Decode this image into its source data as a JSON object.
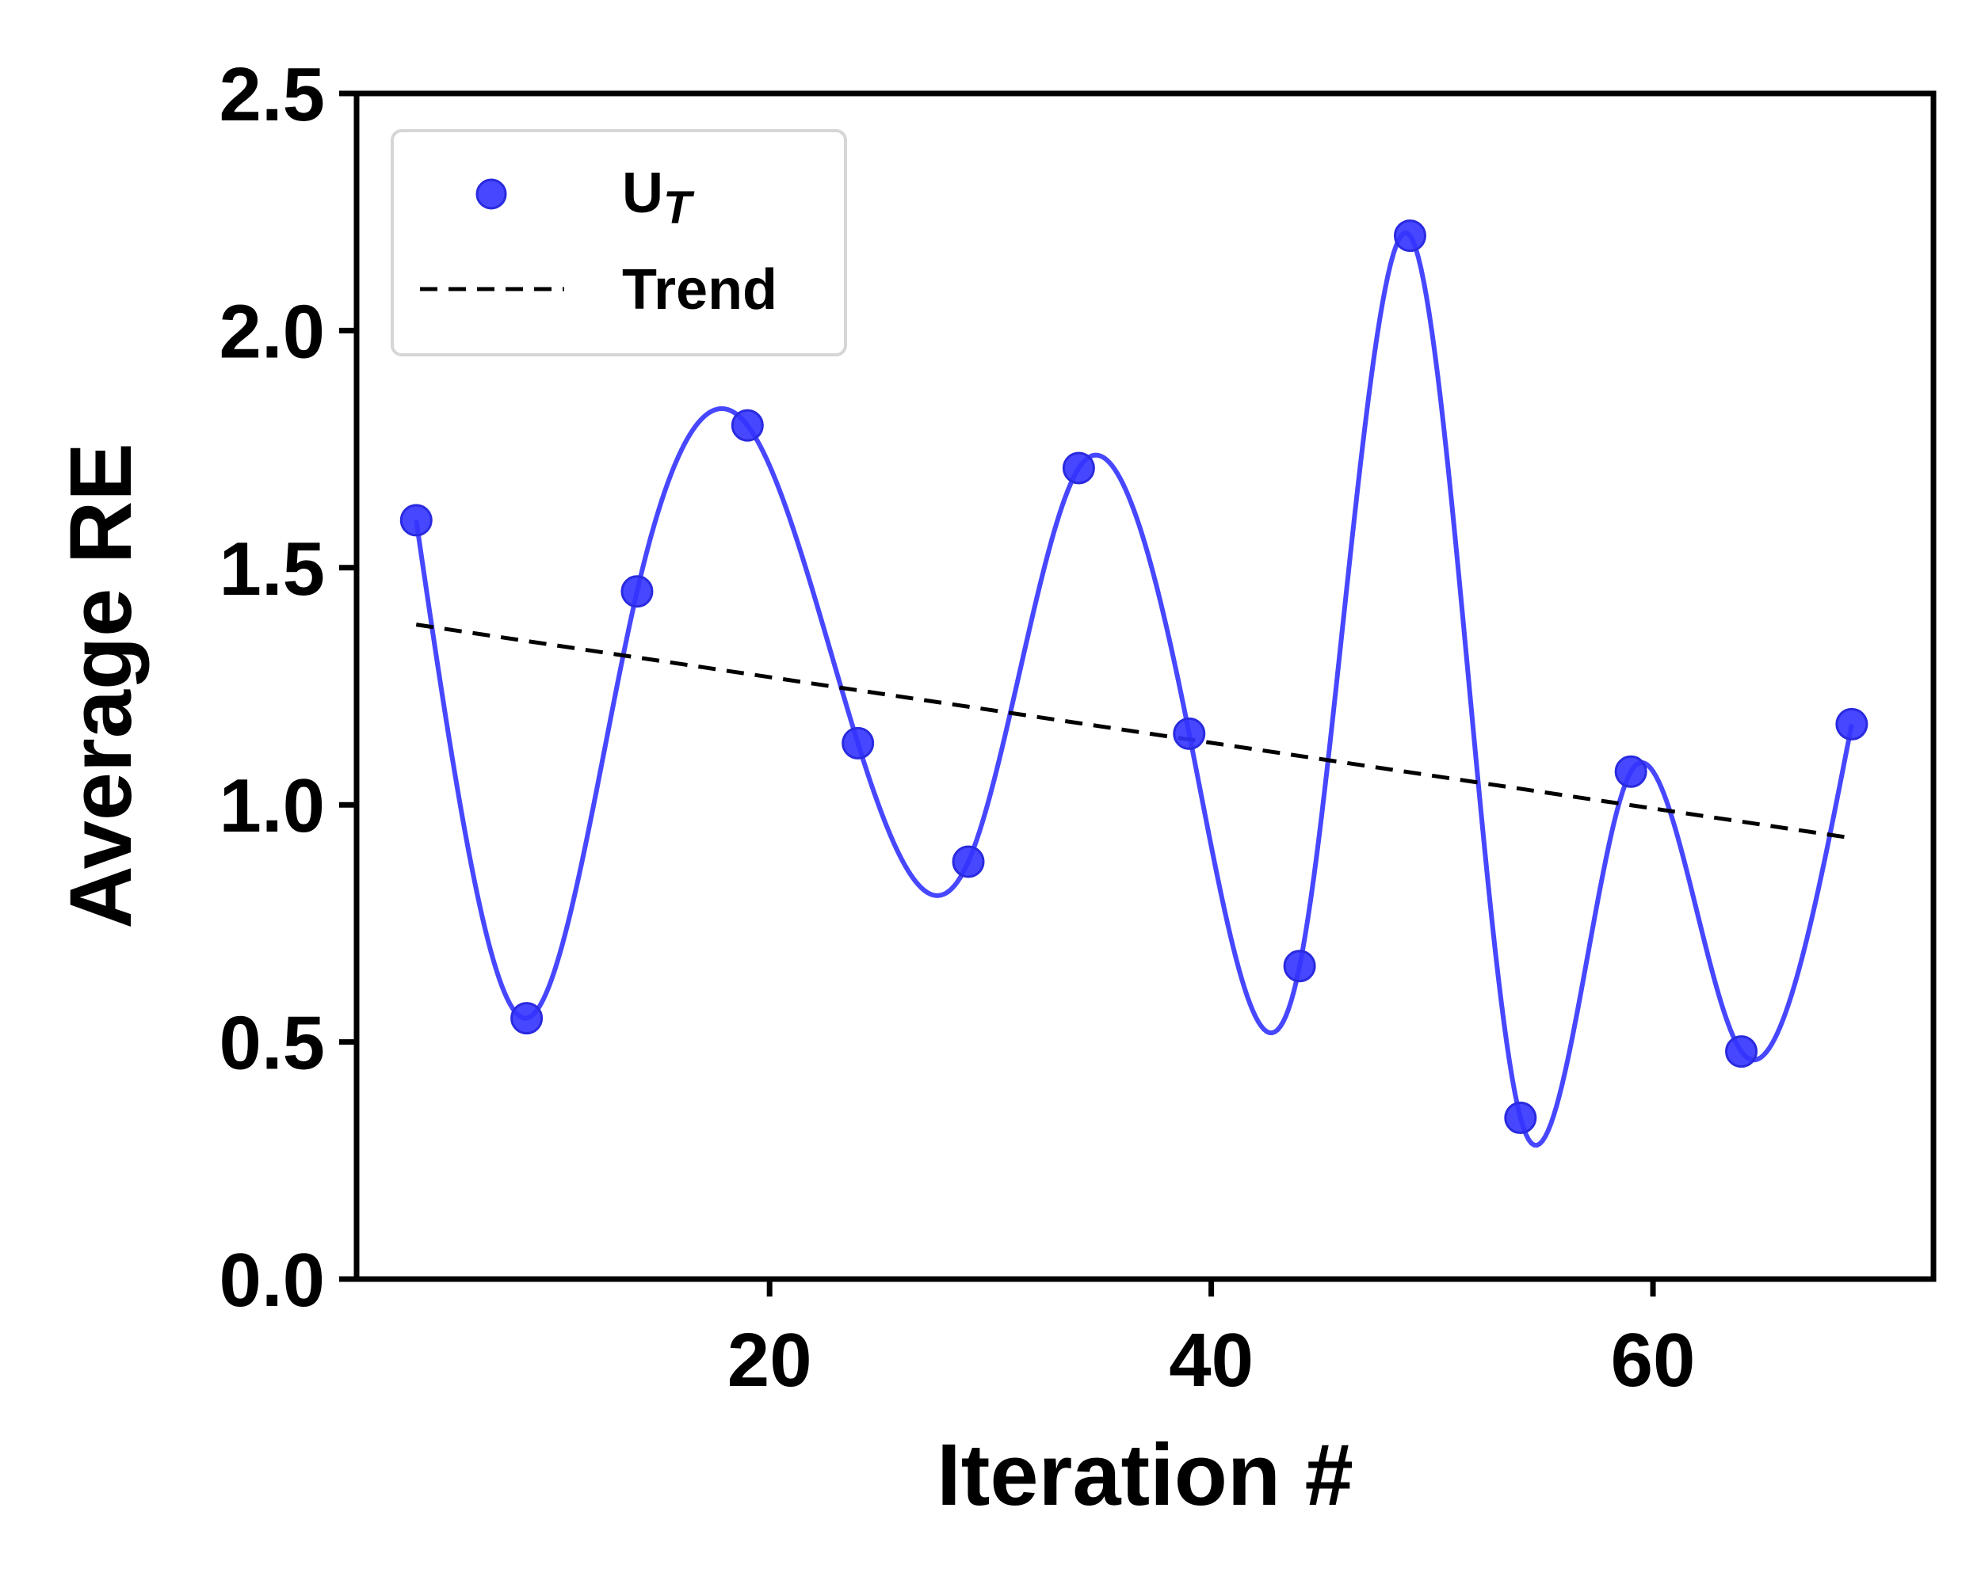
{
  "chart_data": {
    "type": "line",
    "xlabel": "Iteration #",
    "ylabel": "Average RE",
    "xlim": [
      1.3,
      72.7
    ],
    "ylim": [
      0,
      2.5
    ],
    "xticks": [
      20,
      40,
      60
    ],
    "yticks": [
      "0.0",
      "0.5",
      "1.0",
      "1.5",
      "2.0",
      "2.5"
    ],
    "grid": false,
    "legend_position": "top-left",
    "series": [
      {
        "name_main": "U",
        "name_sub": "T",
        "kind": "scatter+smooth",
        "color": "#3333ff",
        "x": [
          4,
          9,
          14,
          19,
          24,
          29,
          34,
          39,
          44,
          49,
          54,
          59,
          64,
          69
        ],
        "y": [
          1.6,
          0.55,
          1.45,
          1.8,
          1.13,
          0.88,
          1.71,
          1.15,
          0.66,
          2.2,
          0.34,
          1.07,
          0.48,
          1.17
        ]
      },
      {
        "name": "Trend",
        "kind": "dashed-line",
        "color": "#000000",
        "x": [
          4,
          69
        ],
        "y": [
          1.38,
          0.93
        ]
      }
    ]
  }
}
